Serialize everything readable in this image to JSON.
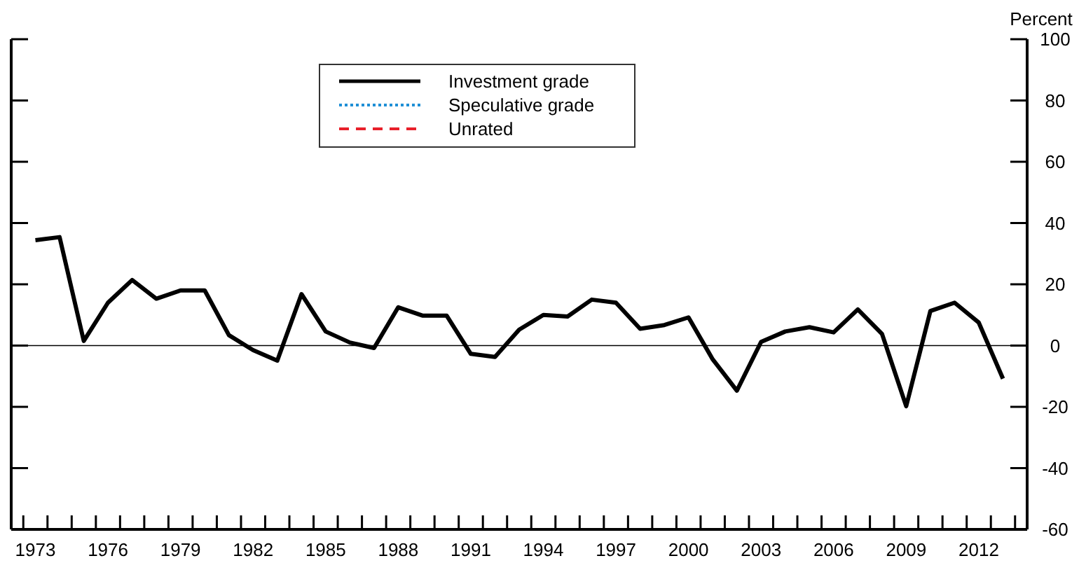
{
  "chart_data": {
    "type": "line",
    "ylabel": "Percent",
    "x": [
      1973,
      1974,
      1975,
      1976,
      1977,
      1978,
      1979,
      1980,
      1981,
      1982,
      1983,
      1984,
      1985,
      1986,
      1987,
      1988,
      1989,
      1990,
      1991,
      1992,
      1993,
      1994,
      1995,
      1996,
      1997,
      1998,
      1999,
      2000,
      2001,
      2002,
      2003,
      2004,
      2005,
      2006,
      2007,
      2008,
      2009,
      2010,
      2011,
      2012,
      2013
    ],
    "series": [
      {
        "name": "Investment grade",
        "color": "#000000",
        "line_style": "solid",
        "values": [
          34.4,
          35.4,
          1.5,
          14,
          21.4,
          15.3,
          18,
          18,
          3.4,
          -1.5,
          -4.9,
          16.8,
          4.6,
          1,
          -0.8,
          12.5,
          9.8,
          9.8,
          -2.7,
          -3.7,
          5.2,
          10,
          9.5,
          15,
          14,
          5.5,
          6.7,
          9.2,
          -4.5,
          -14.7,
          1.2,
          4.6,
          6,
          4.3,
          11.8,
          3.8,
          -19.8,
          11.3,
          14,
          7.5,
          -10.8
        ]
      },
      {
        "name": "Speculative grade",
        "color": "#1f8fd6",
        "line_style": "dotted",
        "values": [
          null,
          null,
          null,
          null,
          null,
          null,
          null,
          null,
          null,
          null,
          null,
          null,
          null,
          null,
          null,
          null,
          null,
          null,
          null,
          null,
          null,
          null,
          null,
          null,
          null,
          null,
          null,
          null,
          null,
          null,
          null,
          null,
          null,
          null,
          null,
          null,
          null,
          null,
          null,
          null,
          null
        ]
      },
      {
        "name": "Unrated",
        "color": "#e8202a",
        "line_style": "dashed",
        "values": [
          null,
          null,
          null,
          null,
          null,
          null,
          null,
          null,
          null,
          null,
          null,
          null,
          null,
          null,
          null,
          null,
          null,
          null,
          null,
          null,
          null,
          null,
          null,
          null,
          null,
          null,
          null,
          null,
          null,
          null,
          null,
          null,
          null,
          null,
          null,
          null,
          null,
          null,
          null,
          null,
          null
        ]
      }
    ],
    "xlim": [
      1972,
      2014
    ],
    "xticks": [
      {
        "value": 1973,
        "label": "1973"
      },
      {
        "value": 1976,
        "label": "1976"
      },
      {
        "value": 1979,
        "label": "1979"
      },
      {
        "value": 1982,
        "label": "1982"
      },
      {
        "value": 1985,
        "label": "1985"
      },
      {
        "value": 1988,
        "label": "1988"
      },
      {
        "value": 1991,
        "label": "1991"
      },
      {
        "value": 1994,
        "label": "1994"
      },
      {
        "value": 1997,
        "label": "1997"
      },
      {
        "value": 2000,
        "label": "2000"
      },
      {
        "value": 2003,
        "label": "2003"
      },
      {
        "value": 2006,
        "label": "2006"
      },
      {
        "value": 2009,
        "label": "2009"
      },
      {
        "value": 2012,
        "label": "2012"
      }
    ],
    "ylim": [
      -60,
      100
    ],
    "yticks": [
      -60,
      -40,
      -20,
      0,
      20,
      40,
      60,
      80,
      100
    ],
    "ref_lines": [
      {
        "axis": "y",
        "value": 0,
        "color": "#000000"
      }
    ],
    "grid": false,
    "legend": "top"
  }
}
